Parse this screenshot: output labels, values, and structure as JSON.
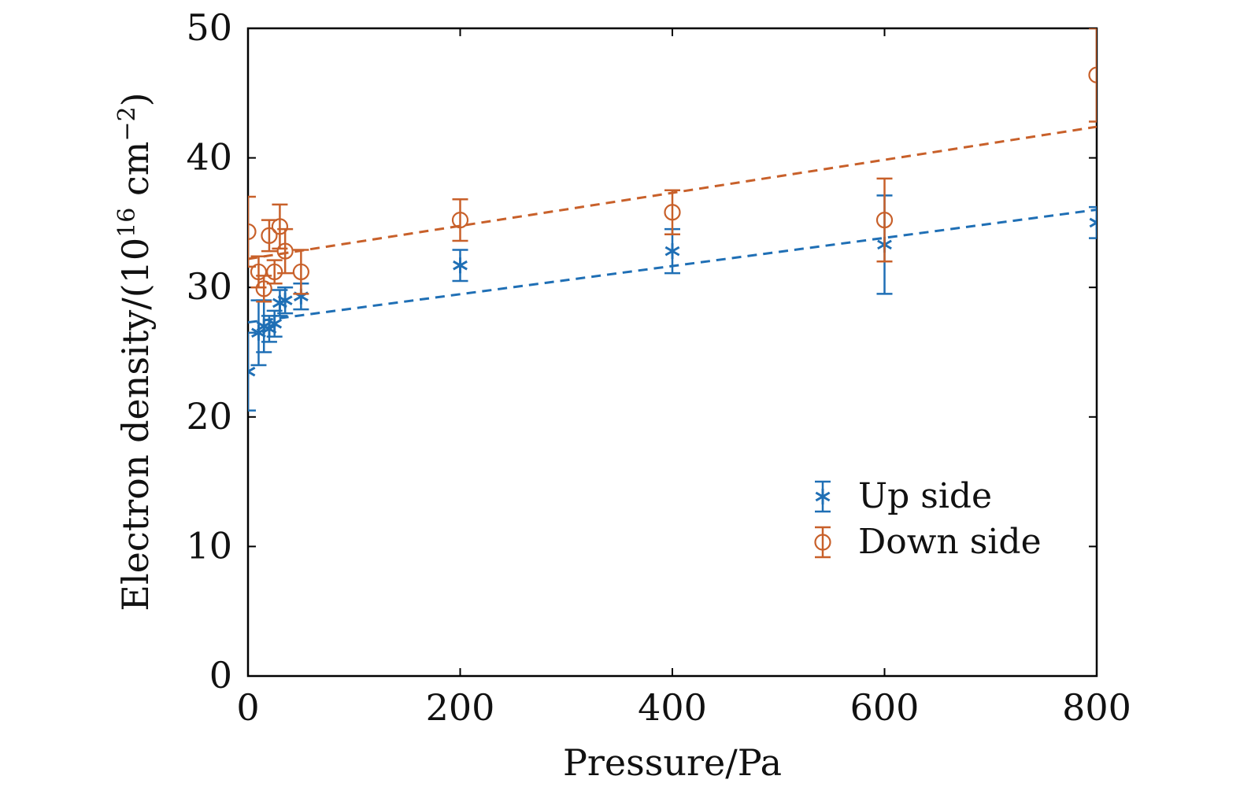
{
  "chart_data": {
    "type": "scatter",
    "title": "",
    "xlabel": "Pressure/Pa",
    "ylabel": "Electron density/(10",
    "ylabel_sup": "16",
    "ylabel_unit": " cm",
    "ylabel_unit_sup": "−2",
    "ylabel_close": ")",
    "xlim": [
      0,
      800
    ],
    "ylim": [
      0,
      50
    ],
    "xticks": [
      0,
      200,
      400,
      600,
      800
    ],
    "yticks": [
      0,
      10,
      20,
      30,
      40,
      50
    ],
    "xtick_labels": [
      "0",
      "200",
      "400",
      "600",
      "800"
    ],
    "ytick_labels": [
      "0",
      "10",
      "20",
      "30",
      "40",
      "50"
    ],
    "grid": false,
    "legend_position": "bottom-right",
    "series": [
      {
        "name": "Up side",
        "color": "#1f6fb5",
        "marker": "asterisk",
        "points": [
          {
            "x": 0,
            "y": 23.5,
            "err": 3.0
          },
          {
            "x": 10,
            "y": 26.5,
            "err": 2.5
          },
          {
            "x": 15,
            "y": 27.0,
            "err": 2.0
          },
          {
            "x": 20,
            "y": 26.8,
            "err": 1.0
          },
          {
            "x": 25,
            "y": 27.2,
            "err": 1.0
          },
          {
            "x": 30,
            "y": 28.8,
            "err": 1.0
          },
          {
            "x": 35,
            "y": 29.0,
            "err": 1.0
          },
          {
            "x": 50,
            "y": 29.3,
            "err": 1.0
          },
          {
            "x": 200,
            "y": 31.7,
            "err": 1.2
          },
          {
            "x": 400,
            "y": 32.8,
            "err": 1.7
          },
          {
            "x": 600,
            "y": 33.3,
            "err": 3.8
          },
          {
            "x": 800,
            "y": 35.0,
            "err": 1.2
          }
        ],
        "fit": {
          "x0": 0,
          "y0": 27.3,
          "x1": 800,
          "y1": 36.0
        }
      },
      {
        "name": "Down side",
        "color": "#c8602a",
        "marker": "circle",
        "points": [
          {
            "x": 0,
            "y": 34.3,
            "err": 2.7
          },
          {
            "x": 10,
            "y": 31.2,
            "err": 1.2
          },
          {
            "x": 15,
            "y": 29.9,
            "err": 1.0
          },
          {
            "x": 20,
            "y": 34.0,
            "err": 1.2
          },
          {
            "x": 25,
            "y": 31.2,
            "err": 0.9
          },
          {
            "x": 30,
            "y": 34.7,
            "err": 1.7
          },
          {
            "x": 35,
            "y": 32.8,
            "err": 1.7
          },
          {
            "x": 50,
            "y": 31.2,
            "err": 1.7
          },
          {
            "x": 200,
            "y": 35.2,
            "err": 1.6
          },
          {
            "x": 400,
            "y": 35.8,
            "err": 1.7
          },
          {
            "x": 600,
            "y": 35.2,
            "err": 3.2
          },
          {
            "x": 800,
            "y": 46.4,
            "err": 3.6
          }
        ],
        "fit": {
          "x0": 0,
          "y0": 32.2,
          "x1": 800,
          "y1": 42.4
        }
      }
    ]
  }
}
